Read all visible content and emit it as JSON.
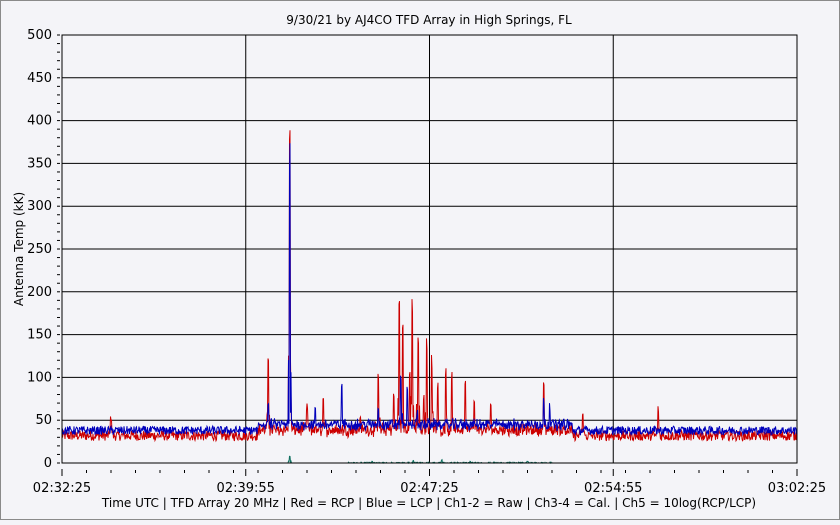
{
  "chart_data": {
    "type": "line",
    "title": "9/30/21  by  AJ4CO TFD Array  in  High Springs, FL",
    "ylabel": "Antenna Temp (kK)",
    "xlabel": "Time UTC | TFD Array 20 MHz | Red = RCP | Blue = LCP | Ch1-2 = Raw | Ch3-4 = Cal. | Ch5 = 10log(RCP/LCP)",
    "ylim": [
      0,
      500
    ],
    "yticks": [
      "0",
      "50",
      "100",
      "150",
      "200",
      "250",
      "300",
      "350",
      "400",
      "450",
      "500"
    ],
    "xlim_seconds": [
      0,
      1800
    ],
    "xticks": [
      "02:32:25",
      "02:39:55",
      "02:47:25",
      "02:54:55",
      "03:02:25"
    ],
    "grid": true,
    "colors": {
      "rcp": "#cc0000",
      "lcp": "#0000bb",
      "ch5": "#107060"
    },
    "series": [
      {
        "name": "RCP",
        "baseline": 32,
        "noise": 6,
        "spikes": [
          [
            120,
            58
          ],
          [
            505,
            130
          ],
          [
            558,
            400
          ],
          [
            600,
            70
          ],
          [
            640,
            85
          ],
          [
            730,
            60
          ],
          [
            775,
            105
          ],
          [
            812,
            85
          ],
          [
            826,
            209
          ],
          [
            835,
            165
          ],
          [
            852,
            120
          ],
          [
            858,
            195
          ],
          [
            872,
            160
          ],
          [
            886,
            80
          ],
          [
            893,
            150
          ],
          [
            905,
            130
          ],
          [
            920,
            95
          ],
          [
            940,
            120
          ],
          [
            955,
            110
          ],
          [
            988,
            105
          ],
          [
            1010,
            75
          ],
          [
            1050,
            70
          ],
          [
            1180,
            95
          ],
          [
            1275,
            60
          ],
          [
            1460,
            68
          ]
        ]
      },
      {
        "name": "LCP",
        "baseline": 38,
        "noise": 5,
        "spikes": [
          [
            505,
            70
          ],
          [
            558,
            375
          ],
          [
            620,
            65
          ],
          [
            685,
            97
          ],
          [
            775,
            65
          ],
          [
            830,
            110
          ],
          [
            845,
            90
          ],
          [
            870,
            65
          ],
          [
            1180,
            80
          ],
          [
            1195,
            70
          ]
        ]
      },
      {
        "name": "Ch5",
        "baseline": 0,
        "noise": 1,
        "spikes": [
          [
            558,
            8
          ],
          [
            760,
            2
          ],
          [
            860,
            3
          ],
          [
            930,
            4
          ],
          [
            1000,
            2
          ],
          [
            1140,
            2
          ]
        ]
      }
    ]
  }
}
